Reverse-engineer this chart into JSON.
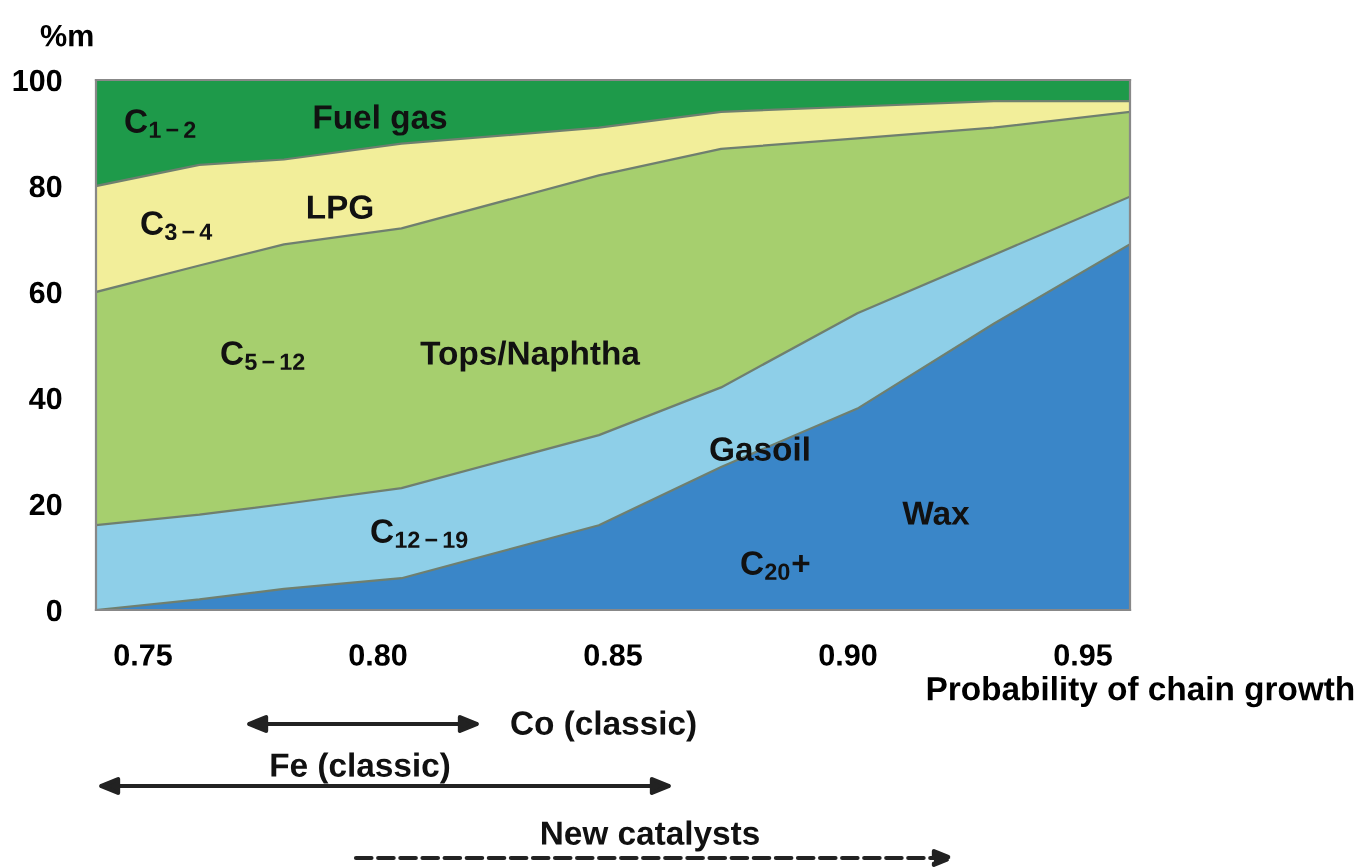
{
  "chart_data": {
    "type": "area",
    "stacked": true,
    "ylabel": "%m",
    "xlabel": "Probability of chain growth",
    "x": [
      0.74,
      0.762,
      0.78,
      0.805,
      0.847,
      0.873,
      0.902,
      0.931,
      0.96
    ],
    "series": [
      {
        "color": "#3a86c8",
        "values": [
          0,
          2,
          4,
          6,
          16,
          27,
          38,
          54,
          69
        ]
      },
      {
        "color": "#8ecfe8",
        "values": [
          16,
          16,
          16,
          17,
          17,
          15,
          18,
          13,
          9
        ]
      },
      {
        "color": "#a6cf6e",
        "values": [
          44,
          47,
          49,
          49,
          49,
          45,
          33,
          24,
          16
        ]
      },
      {
        "color": "#f2ee9a",
        "values": [
          20,
          19,
          16,
          16,
          9,
          7,
          6,
          5,
          2
        ]
      },
      {
        "color": "#1e9a4a",
        "values": [
          20,
          16,
          15,
          12,
          9,
          6,
          5,
          4,
          4
        ]
      }
    ],
    "xlim": [
      0.74,
      0.96
    ],
    "xticks": [
      {
        "value": 0.75,
        "label": "0.75"
      },
      {
        "value": 0.8,
        "label": "0.80"
      },
      {
        "value": 0.85,
        "label": "0.85"
      },
      {
        "value": 0.9,
        "label": "0.90"
      },
      {
        "value": 0.95,
        "label": "0.95"
      }
    ],
    "ylim": [
      0,
      100
    ],
    "yticks": [
      0,
      20,
      40,
      60,
      80,
      100
    ],
    "grid": false,
    "annotations": [
      "C$_{1−2}$",
      "Fuel gas",
      "C$_{3−4}$",
      "LPG",
      "C$_{5−12}$",
      "Tops/Naphtha",
      "Gasoil",
      "C$_{12−19}$",
      "Wax",
      "C$_{20}$+",
      "Co (classic)",
      "Fe (classic)",
      "New catalysts"
    ]
  }
}
